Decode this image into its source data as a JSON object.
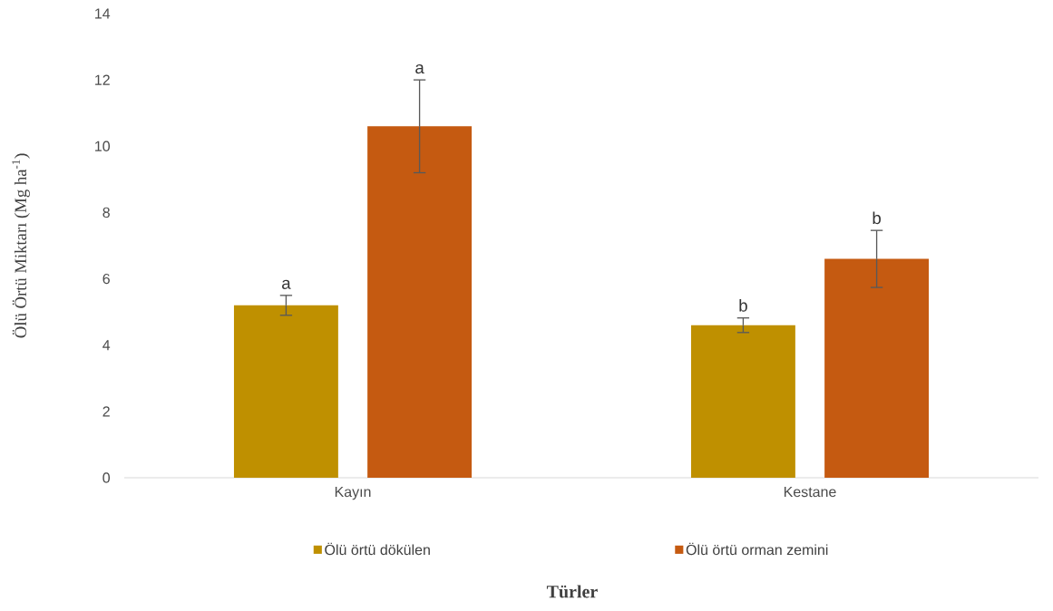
{
  "chart_data": {
    "type": "bar",
    "categories": [
      "Kayın",
      "Kestane"
    ],
    "series": [
      {
        "name": "Ölü örtü dökülen",
        "color": "#bf9000",
        "values": [
          5.2,
          4.6
        ],
        "errors": [
          0.3,
          0.22
        ]
      },
      {
        "name": "Ölü örtü orman zemini",
        "color": "#c55a11",
        "values": [
          10.6,
          6.6
        ],
        "errors": [
          1.4,
          0.86
        ]
      }
    ],
    "ylim": [
      0,
      14
    ],
    "yticks": [
      0,
      2,
      4,
      6,
      8,
      10,
      12,
      14
    ],
    "xlabel": "Türler",
    "ylabel": "Ölü Örtü Miktarı (Mg ha$^{-1}$)",
    "legend": "bottom",
    "annotations": [
      "a",
      "a",
      "b",
      "b"
    ]
  }
}
